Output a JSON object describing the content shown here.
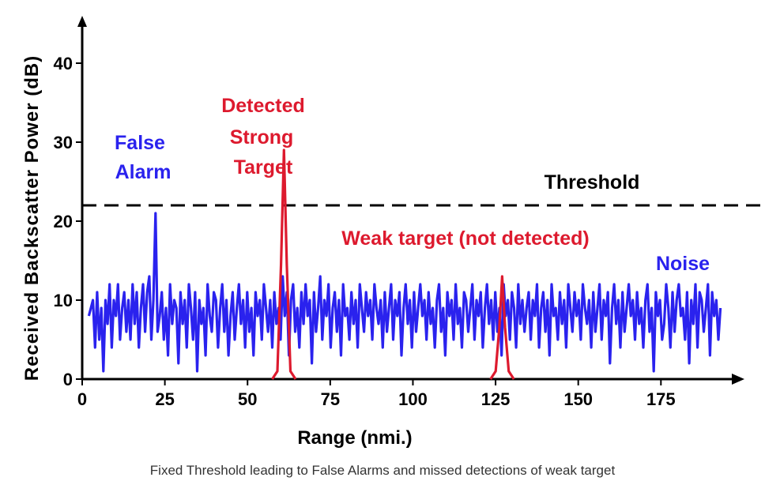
{
  "chart_data": {
    "type": "line",
    "xlabel": "Range (nmi.)",
    "ylabel": "Received Backscatter Power (dB)",
    "xlim": [
      0,
      195
    ],
    "ylim": [
      0,
      45
    ],
    "x_ticks": [
      "0",
      "25",
      "50",
      "75",
      "100",
      "125",
      "150",
      "175"
    ],
    "y_ticks": [
      "0",
      "10",
      "20",
      "30",
      "40"
    ],
    "threshold": {
      "name": "Threshold",
      "value": 22
    },
    "series": [
      {
        "name": "Noise",
        "color": "#2a22ee",
        "values": [
          8,
          9,
          10,
          4,
          11,
          5,
          9,
          1,
          10,
          7,
          12,
          4,
          10,
          8,
          12,
          5,
          9,
          11,
          6,
          10,
          5,
          12,
          7,
          11,
          4,
          9,
          12,
          6,
          11,
          13,
          5,
          10,
          21,
          6,
          8,
          11,
          5,
          9,
          3,
          12,
          7,
          10,
          9,
          2,
          11,
          7,
          10,
          4,
          12,
          9,
          5,
          11,
          1,
          10,
          7,
          9,
          3,
          12,
          8,
          6,
          11,
          10,
          4,
          9,
          12,
          6,
          10,
          3,
          8,
          11,
          5,
          9,
          12,
          7,
          10,
          4,
          11,
          6,
          9,
          3,
          11,
          8,
          10,
          5,
          12,
          9,
          6,
          10,
          4,
          11,
          7,
          9,
          5,
          13,
          8,
          11,
          3,
          10,
          12,
          6,
          9,
          4,
          11,
          7,
          12,
          8,
          10,
          2,
          11,
          6,
          9,
          13,
          5,
          10,
          8,
          12,
          4,
          9,
          11,
          6,
          10,
          3,
          12,
          8,
          9,
          5,
          11,
          7,
          10,
          4,
          12,
          9,
          6,
          11,
          8,
          10,
          5,
          12,
          9,
          7,
          10,
          4,
          11,
          6,
          9,
          12,
          5,
          10,
          8,
          11,
          3,
          9,
          12,
          7,
          10,
          4,
          11,
          6,
          9,
          12,
          8,
          10,
          5,
          11,
          7,
          9,
          4,
          10,
          12,
          6,
          9,
          3,
          11,
          8,
          10,
          5,
          12,
          7,
          9,
          4,
          11,
          10,
          6,
          9,
          12,
          5,
          10,
          8,
          11,
          4,
          9,
          12,
          7,
          10,
          5,
          11,
          6,
          9,
          3,
          12,
          8,
          10,
          5,
          11,
          9,
          4,
          12,
          7,
          10,
          6,
          9,
          11,
          5,
          10,
          8,
          12,
          4,
          9,
          11,
          6,
          10,
          3,
          12,
          8,
          9,
          5,
          11,
          7,
          10,
          4,
          12,
          9,
          6,
          11,
          8,
          10,
          5,
          12,
          9,
          7,
          10,
          4,
          11,
          6,
          9,
          12,
          5,
          10,
          8,
          11,
          2,
          9,
          12,
          7,
          10,
          4,
          11,
          6,
          9,
          12,
          8,
          10,
          5,
          11,
          7,
          9,
          4,
          10,
          12,
          6,
          9,
          1,
          11,
          8,
          10,
          5,
          7,
          12,
          9,
          4,
          11,
          6,
          10,
          12,
          8,
          9,
          5,
          11,
          2,
          10,
          7,
          12,
          4,
          11,
          10,
          6,
          9,
          12,
          3,
          11,
          8,
          10,
          5,
          9
        ]
      },
      {
        "name": "Detected Strong Target",
        "color": "#dd1a2e",
        "peak_x": 61,
        "peak_y": 29
      },
      {
        "name": "Weak target (not detected)",
        "color": "#dd1a2e",
        "peak_x": 127,
        "peak_y": 13
      }
    ],
    "annotations": {
      "false_alarm": [
        "False",
        "Alarm"
      ],
      "strong_target": [
        "Detected",
        "Strong",
        "Target"
      ],
      "threshold": "Threshold",
      "weak_target": "Weak target (not detected)",
      "noise": "Noise"
    }
  },
  "caption": "Fixed Threshold leading to False Alarms and missed detections of weak target"
}
